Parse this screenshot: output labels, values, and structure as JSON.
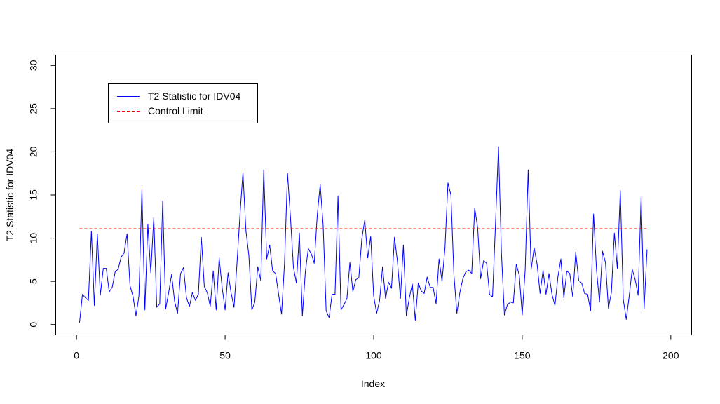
{
  "chart_data": {
    "type": "line",
    "title": "",
    "xlabel": "Index",
    "ylabel": "T2 Statistic for IDV04",
    "xlim": [
      -7,
      207
    ],
    "ylim": [
      -1.2,
      31.2
    ],
    "xticks": [
      0,
      50,
      100,
      150,
      200
    ],
    "yticks": [
      0,
      5,
      10,
      15,
      20,
      25,
      30
    ],
    "grid": false,
    "legend": {
      "position": "top-left",
      "entries": [
        {
          "label": "T2 Statistic for IDV04",
          "color": "#0000ff",
          "style": "solid"
        },
        {
          "label": "Control Limit",
          "color": "#ff0000",
          "style": "dashed"
        }
      ]
    },
    "series": [
      {
        "name": "T2 Statistic for IDV04",
        "color": "#0000ff",
        "x_start": 1,
        "values": [
          0.2,
          3.5,
          3.1,
          2.8,
          10.8,
          2.2,
          10.5,
          3.4,
          6.5,
          6.5,
          3.8,
          4.3,
          6.1,
          6.4,
          7.8,
          8.3,
          10.5,
          4.5,
          3.3,
          1.0,
          3.3,
          15.6,
          1.7,
          11.6,
          6.0,
          12.4,
          2.0,
          2.4,
          14.3,
          1.8,
          3.7,
          5.8,
          2.7,
          1.3,
          5.9,
          6.6,
          3.1,
          2.1,
          3.7,
          2.8,
          3.5,
          10.1,
          4.4,
          3.7,
          2.1,
          6.2,
          1.7,
          7.7,
          4.3,
          1.7,
          6.0,
          3.7,
          2.0,
          7.1,
          12.7,
          17.6,
          10.9,
          8.0,
          1.7,
          2.6,
          6.7,
          5.1,
          17.9,
          7.6,
          9.2,
          6.2,
          5.9,
          3.5,
          1.2,
          7.1,
          17.5,
          12.4,
          6.6,
          4.8,
          10.6,
          1.0,
          6.1,
          8.8,
          8.2,
          7.1,
          12.6,
          16.2,
          11.5,
          1.6,
          0.8,
          3.5,
          3.5,
          14.9,
          1.7,
          2.3,
          3.0,
          7.2,
          3.8,
          5.2,
          5.4,
          9.9,
          12.1,
          7.7,
          10.2,
          3.3,
          1.3,
          2.8,
          6.7,
          3.0,
          4.9,
          4.2,
          10.1,
          7.3,
          3.0,
          9.2,
          1.0,
          3.1,
          4.7,
          0.5,
          4.8,
          3.9,
          3.6,
          5.5,
          4.3,
          4.3,
          2.4,
          7.6,
          5.0,
          8.9,
          16.4,
          15.0,
          5.8,
          1.3,
          3.7,
          5.3,
          6.1,
          6.3,
          5.9,
          13.5,
          11.2,
          5.3,
          7.4,
          7.1,
          3.5,
          3.2,
          11.6,
          20.6,
          8.3,
          1.1,
          2.3,
          2.6,
          2.5,
          7.0,
          5.7,
          1.1,
          6.4,
          17.9,
          6.4,
          8.9,
          7.0,
          3.6,
          6.3,
          3.5,
          5.9,
          3.5,
          2.2,
          5.5,
          7.6,
          3.1,
          6.2,
          5.9,
          3.2,
          8.4,
          5.1,
          4.8,
          3.6,
          3.5,
          1.6,
          12.8,
          6.3,
          2.6,
          8.5,
          7.2,
          1.9,
          3.7,
          10.6,
          6.5,
          15.5,
          2.9,
          0.6,
          3.3,
          6.4,
          5.2,
          3.4,
          14.8,
          1.8,
          8.7
        ]
      },
      {
        "name": "Control Limit",
        "color": "#ff0000",
        "x_start": 1,
        "x_end": 192,
        "value": 11.1
      }
    ]
  }
}
